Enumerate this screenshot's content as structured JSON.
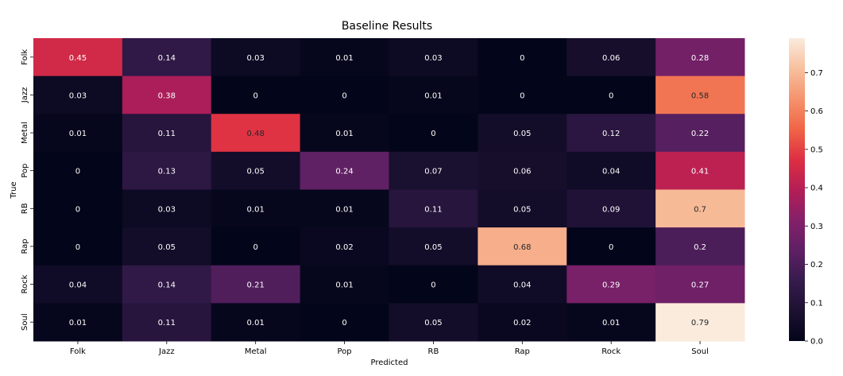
{
  "chart_data": {
    "type": "heatmap",
    "title": "Baseline Results",
    "xlabel": "Predicted",
    "ylabel": "True",
    "x_categories": [
      "Folk",
      "Jazz",
      "Metal",
      "Pop",
      "RB",
      "Rap",
      "Rock",
      "Soul"
    ],
    "y_categories": [
      "Folk",
      "Jazz",
      "Metal",
      "Pop",
      "RB",
      "Rap",
      "Rock",
      "Soul"
    ],
    "values": [
      [
        "0.45",
        "0.14",
        "0.03",
        "0.01",
        "0.03",
        "0",
        "0.06",
        "0.28"
      ],
      [
        "0.03",
        "0.38",
        "0",
        "0",
        "0.01",
        "0",
        "0",
        "0.58"
      ],
      [
        "0.01",
        "0.11",
        "0.48",
        "0.01",
        "0",
        "0.05",
        "0.12",
        "0.22"
      ],
      [
        "0",
        "0.13",
        "0.05",
        "0.24",
        "0.07",
        "0.06",
        "0.04",
        "0.41"
      ],
      [
        "0",
        "0.03",
        "0.01",
        "0.01",
        "0.11",
        "0.05",
        "0.09",
        "0.7"
      ],
      [
        "0",
        "0.05",
        "0",
        "0.02",
        "0.05",
        "0.68",
        "0",
        "0.2"
      ],
      [
        "0.04",
        "0.14",
        "0.21",
        "0.01",
        "0",
        "0.04",
        "0.29",
        "0.27"
      ],
      [
        "0.01",
        "0.11",
        "0.01",
        "0",
        "0.05",
        "0.02",
        "0.01",
        "0.79"
      ]
    ],
    "colorbar": {
      "min": 0,
      "max": 0.79,
      "ticks": [
        "0.0",
        "0.1",
        "0.2",
        "0.3",
        "0.4",
        "0.5",
        "0.6",
        "0.7"
      ],
      "colormap": "rocket"
    },
    "grid": false,
    "legend": "colorbar-right"
  }
}
